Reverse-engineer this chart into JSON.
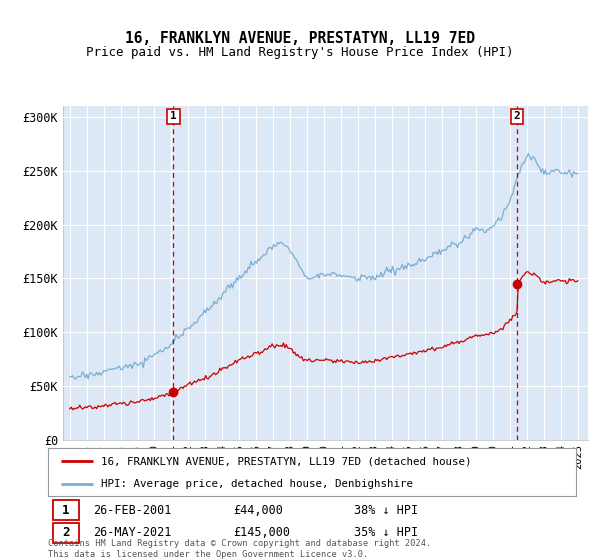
{
  "title": "16, FRANKLYN AVENUE, PRESTATYN, LL19 7ED",
  "subtitle": "Price paid vs. HM Land Registry's House Price Index (HPI)",
  "legend_text_1": "16, FRANKLYN AVENUE, PRESTATYN, LL19 7ED (detached house)",
  "legend_text_2": "HPI: Average price, detached house, Denbighshire",
  "transaction_1_date": "26-FEB-2001",
  "transaction_1_price": "£44,000",
  "transaction_1_hpi": "38% ↓ HPI",
  "transaction_2_date": "26-MAY-2021",
  "transaction_2_price": "£145,000",
  "transaction_2_hpi": "35% ↓ HPI",
  "footnote": "Contains HM Land Registry data © Crown copyright and database right 2024.\nThis data is licensed under the Open Government Licence v3.0.",
  "hpi_color": "#7aadd4",
  "price_color": "#cc0000",
  "vline_color": "#cc0000",
  "bg_color": "#ffffff",
  "plot_bg_color": "#dce8f5",
  "grid_color": "#ffffff",
  "ylim": [
    0,
    310000
  ],
  "yticks": [
    0,
    50000,
    100000,
    150000,
    200000,
    250000,
    300000
  ],
  "ytick_labels": [
    "£0",
    "£50K",
    "£100K",
    "£150K",
    "£200K",
    "£250K",
    "£300K"
  ],
  "xmin": 1995,
  "xmax": 2025,
  "t1": 2001.12,
  "t2": 2021.41,
  "price1": 44000,
  "price2": 145000
}
